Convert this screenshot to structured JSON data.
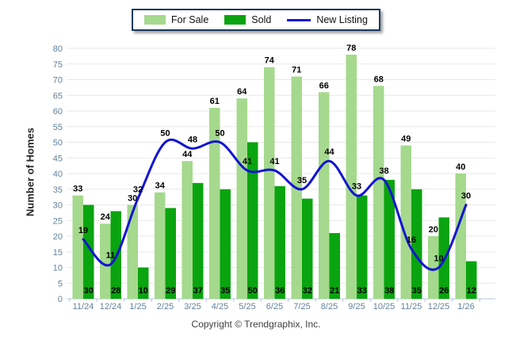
{
  "chart_data": {
    "type": "bar",
    "title": "",
    "categories": [
      "11/24",
      "12/24",
      "1/25",
      "2/25",
      "3/25",
      "4/25",
      "5/25",
      "6/25",
      "7/25",
      "8/25",
      "9/25",
      "10/25",
      "11/25",
      "12/25",
      "1/26"
    ],
    "series": [
      {
        "name": "For Sale",
        "type": "bar",
        "color": "#A5D98D",
        "values": [
          33,
          24,
          30,
          34,
          44,
          61,
          64,
          74,
          71,
          66,
          78,
          68,
          49,
          20,
          40
        ]
      },
      {
        "name": "Sold",
        "type": "bar",
        "color": "#09A40F",
        "values": [
          30,
          28,
          10,
          29,
          37,
          35,
          50,
          36,
          32,
          21,
          33,
          38,
          35,
          26,
          12
        ]
      },
      {
        "name": "New Listing",
        "type": "line",
        "color": "#1414D2",
        "values": [
          19,
          11,
          32,
          50,
          48,
          50,
          41,
          41,
          35,
          44,
          33,
          38,
          16,
          10,
          30
        ]
      }
    ],
    "xlabel": "",
    "ylabel": "Number of Homes",
    "ylim": [
      0,
      80
    ],
    "ytick_step": 5,
    "grid": true,
    "legend_position": "top-center",
    "value_labels": {
      "for_sale": "above bars",
      "sold": "inside bar bottoms",
      "new_listing": "above line points"
    }
  },
  "footer": {
    "text": "Copyright © Trendgraphix, Inc."
  }
}
